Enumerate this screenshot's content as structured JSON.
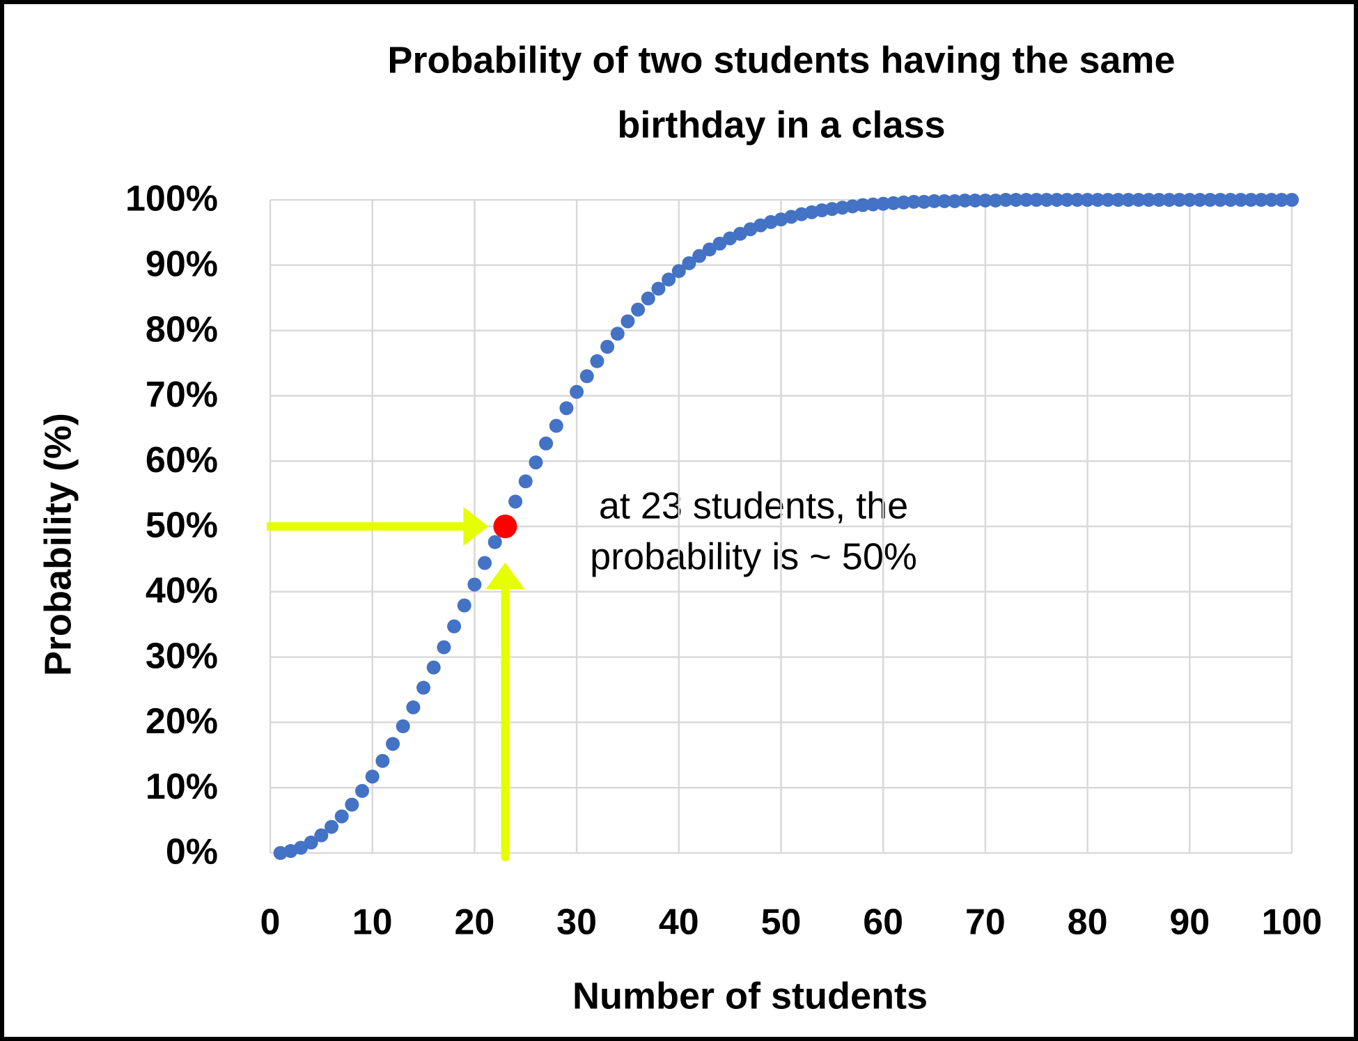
{
  "chart_data": {
    "type": "scatter",
    "title": [
      "Probability of two students having the same",
      "birthday in a class"
    ],
    "x_label": "Number of students",
    "y_label": "Probability (%)",
    "xlim": [
      0,
      100
    ],
    "xticks": [
      0,
      10,
      20,
      30,
      40,
      50,
      60,
      70,
      80,
      90,
      100
    ],
    "ylim": [
      0,
      100
    ],
    "yticks": [
      {
        "value": 0,
        "label": "0%"
      },
      {
        "value": 10,
        "label": "10%"
      },
      {
        "value": 20,
        "label": "20%"
      },
      {
        "value": 30,
        "label": "30%"
      },
      {
        "value": 40,
        "label": "40%"
      },
      {
        "value": 50,
        "label": "50%"
      },
      {
        "value": 60,
        "label": "60%"
      },
      {
        "value": 70,
        "label": "70%"
      },
      {
        "value": 80,
        "label": "80%"
      },
      {
        "value": 90,
        "label": "90%"
      },
      {
        "value": 100,
        "label": "100%"
      }
    ],
    "grid": true,
    "series": [
      {
        "color": "#4472c4",
        "x": [
          1,
          2,
          3,
          4,
          5,
          6,
          7,
          8,
          9,
          10,
          11,
          12,
          13,
          14,
          15,
          16,
          17,
          18,
          19,
          20,
          21,
          22,
          23,
          24,
          25,
          26,
          27,
          28,
          29,
          30,
          31,
          32,
          33,
          34,
          35,
          36,
          37,
          38,
          39,
          40,
          41,
          42,
          43,
          44,
          45,
          46,
          47,
          48,
          49,
          50,
          51,
          52,
          53,
          54,
          55,
          56,
          57,
          58,
          59,
          60,
          61,
          62,
          63,
          64,
          65,
          66,
          67,
          68,
          69,
          70,
          71,
          72,
          73,
          74,
          75,
          76,
          77,
          78,
          79,
          80,
          81,
          82,
          83,
          84,
          85,
          86,
          87,
          88,
          89,
          90,
          91,
          92,
          93,
          94,
          95,
          96,
          97,
          98,
          99,
          100
        ],
        "values": [
          0,
          0.3,
          0.8,
          1.6,
          2.7,
          4.0,
          5.6,
          7.4,
          9.5,
          11.7,
          14.1,
          16.7,
          19.4,
          22.3,
          25.3,
          28.4,
          31.5,
          34.7,
          37.9,
          41.1,
          44.4,
          47.6,
          50.7,
          53.8,
          56.9,
          59.8,
          62.7,
          65.4,
          68.1,
          70.6,
          73.0,
          75.3,
          77.5,
          79.5,
          81.4,
          83.2,
          84.9,
          86.4,
          87.8,
          89.1,
          90.3,
          91.4,
          92.4,
          93.3,
          94.1,
          94.8,
          95.5,
          96.1,
          96.6,
          97.0,
          97.4,
          97.8,
          98.1,
          98.4,
          98.6,
          98.8,
          99.0,
          99.2,
          99.3,
          99.4,
          99.5,
          99.6,
          99.7,
          99.7,
          99.8,
          99.8,
          99.8,
          99.9,
          99.9,
          99.9,
          99.9,
          100,
          100,
          100,
          100,
          100,
          100,
          100,
          100,
          100,
          100,
          100,
          100,
          100,
          100,
          100,
          100,
          100,
          100,
          100,
          100,
          100,
          100,
          100,
          100,
          100,
          100,
          100,
          100,
          100
        ]
      }
    ],
    "highlight": {
      "x": 23,
      "y": 50,
      "color": "#ff0000"
    },
    "annotation": [
      "at 23 students, the",
      "probability is ~ 50%"
    ],
    "arrow_color": "#e6ff00"
  }
}
